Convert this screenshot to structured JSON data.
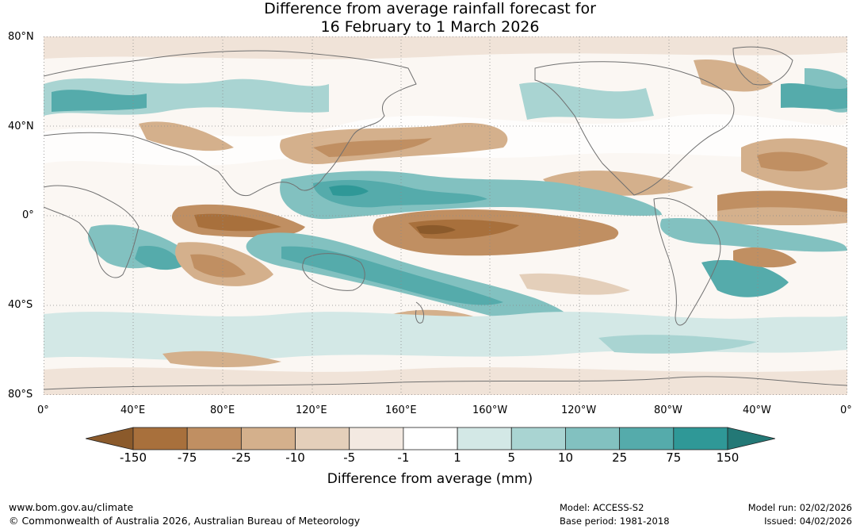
{
  "title": {
    "line1": "Difference from average rainfall forecast for",
    "line2": "16 February to 1 March 2026"
  },
  "map": {
    "projection": "equirectangular",
    "lat_labels": [
      "80°N",
      "40°N",
      "0°",
      "40°S",
      "80°S"
    ],
    "lon_labels": [
      "0°",
      "40°E",
      "80°E",
      "120°E",
      "160°E",
      "160°W",
      "120°W",
      "80°W",
      "40°W",
      "0°"
    ],
    "grid": "dotted"
  },
  "legend": {
    "title": "Difference from average (mm)",
    "tick_labels": [
      "-150",
      "-75",
      "-25",
      "-10",
      "-5",
      "-1",
      "1",
      "5",
      "10",
      "25",
      "75",
      "150"
    ],
    "colors": [
      "#8b5a2b",
      "#a8703c",
      "#c08f62",
      "#d4b08c",
      "#e4cfba",
      "#f3e9e1",
      "#ffffff",
      "#d3e8e6",
      "#a9d4d2",
      "#82c1c0",
      "#55abab",
      "#2f9897",
      "#237876"
    ],
    "extend": "both"
  },
  "footer": {
    "url": "www.bom.gov.au/climate",
    "copyright": "© Commonwealth of Australia 2026, Australian Bureau of Meteorology",
    "model": "Model: ACCESS-S2",
    "base_period": "Base period: 1981-2018",
    "model_run": "Model run: 02/02/2026",
    "issued": "Issued: 04/02/2026"
  }
}
